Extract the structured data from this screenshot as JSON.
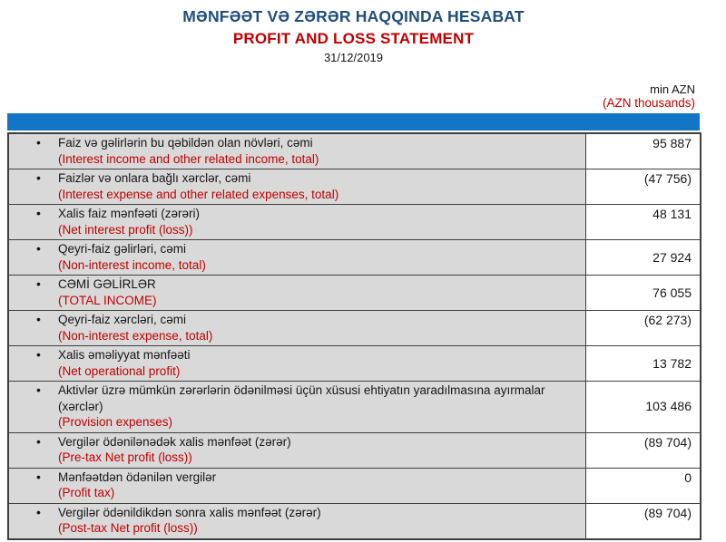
{
  "header": {
    "title_az": "MƏNFƏƏT VƏ ZƏRƏR HAQQINDA HESABAT",
    "title_en": "PROFIT AND LOSS STATEMENT",
    "date": "31/12/2019"
  },
  "unit_note": {
    "line1": "min AZN",
    "line2": "(AZN thousands)"
  },
  "colors": {
    "title_blue": "#1F4E79",
    "accent_red": "#C00000",
    "header_bar_blue": "#1375C6",
    "row_gray": "#D9D9D9",
    "border": "#3F3F3F"
  },
  "table": {
    "bullet": "•",
    "rows": [
      {
        "az": "Faiz və gəlirlərin bu qəbildən olan növləri, cəmi",
        "en": "(Interest income and other related income, total)",
        "value": "95 887",
        "value_valign": "top"
      },
      {
        "az": "Faizlər və onlara bağlı xərclər, cəmi",
        "en": "(Interest expense and other related expenses, total)",
        "value": "(47 756)",
        "value_valign": "top"
      },
      {
        "az": "Xalis faiz mənfəəti (zərəri)",
        "en": "(Net interest profit (loss))",
        "value": "48 131",
        "value_valign": "top"
      },
      {
        "az": "Qeyri-faiz gəlirləri, cəmi",
        "en": "(Non-interest income, total)",
        "value": "27 924",
        "value_valign": "middle"
      },
      {
        "az": "CƏMİ GƏLİRLƏR",
        "en": "(TOTAL INCOME)",
        "value": "76 055",
        "value_valign": "middle"
      },
      {
        "az": "Qeyri-faiz xərcləri, cəmi",
        "en": "(Non-interest expense, total)",
        "value": "(62 273)",
        "value_valign": "top"
      },
      {
        "az": "Xalis əməliyyat mənfəəti",
        "en": "(Net operational profit)",
        "value": "13 782",
        "value_valign": "middle"
      },
      {
        "az": "Aktivlər üzrə mümkün zərərlərin ödənilməsi üçün xüsusi ehtiyatın yaradılmasına ayırmalar (xərclər)",
        "en": "(Provision expenses)",
        "value": "103 486",
        "value_valign": "middle"
      },
      {
        "az": "Vergilər ödənilənədək xalis mənfəət (zərər)",
        "en": "(Pre-tax Net profit (loss))",
        "value": "(89 704)",
        "value_valign": "top"
      },
      {
        "az": "Mənfəətdən ödənilən vergilər",
        "en": "(Profit tax)",
        "value": "0",
        "value_valign": "top"
      },
      {
        "az": "Vergilər ödənildikdən sonra xalis mənfəət (zərər)",
        "en": "(Post-tax Net profit (loss))",
        "value": "(89 704)",
        "value_valign": "top"
      }
    ]
  }
}
